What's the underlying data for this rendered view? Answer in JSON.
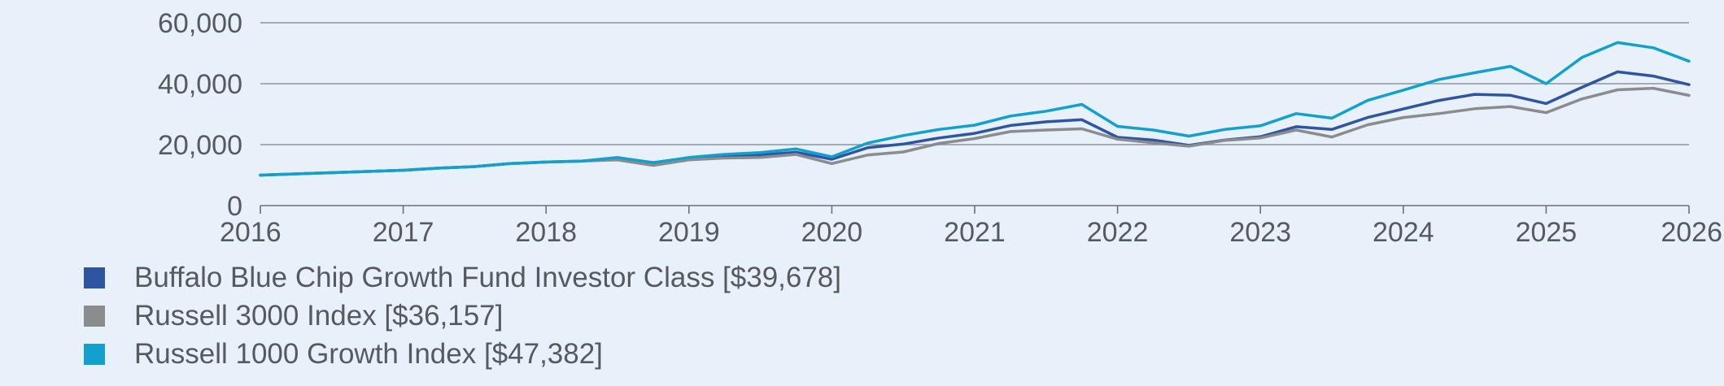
{
  "chart_data": {
    "type": "line",
    "xlim": [
      2016,
      2026
    ],
    "ylim": [
      0,
      60000
    ],
    "yticks": [
      0,
      20000,
      40000,
      60000
    ],
    "ytick_labels": [
      "0",
      "20,000",
      "40,000",
      "60,000"
    ],
    "xticks": [
      2016,
      2017,
      2018,
      2019,
      2020,
      2021,
      2022,
      2023,
      2024,
      2025,
      2026
    ],
    "xtick_labels": [
      "2016",
      "2017",
      "2018",
      "2019",
      "2020",
      "2021",
      "2022",
      "2023",
      "2024",
      "2025",
      "2026"
    ],
    "grid": "horizontal",
    "legend_position": "bottom",
    "x": [
      2016.0,
      2016.5,
      2017.0,
      2017.25,
      2017.5,
      2017.75,
      2018.0,
      2018.25,
      2018.5,
      2018.75,
      2019.0,
      2019.25,
      2019.5,
      2019.75,
      2020.0,
      2020.25,
      2020.5,
      2020.75,
      2021.0,
      2021.25,
      2021.5,
      2021.75,
      2022.0,
      2022.25,
      2022.5,
      2022.75,
      2023.0,
      2023.25,
      2023.5,
      2023.75,
      2024.0,
      2024.25,
      2024.5,
      2024.75,
      2025.0,
      2025.25,
      2025.5,
      2025.75,
      2026.0
    ],
    "series": [
      {
        "name": "Buffalo Blue Chip Growth Fund Investor Class [$39,678]",
        "color": "#2f55a2",
        "values": [
          10000,
          10800,
          11600,
          12300,
          12800,
          13800,
          14300,
          14600,
          15500,
          14100,
          15500,
          16400,
          16600,
          17500,
          15200,
          19000,
          20200,
          22200,
          23700,
          26300,
          27500,
          28200,
          22400,
          21500,
          19800,
          21500,
          22600,
          25900,
          25000,
          28900,
          31700,
          34500,
          36500,
          36200,
          33500,
          38800,
          43900,
          42500,
          39678
        ]
      },
      {
        "name": "Russell 3000 Index [$36,157]",
        "color": "#8a8c8e",
        "values": [
          10000,
          10800,
          11600,
          12300,
          12800,
          13800,
          14300,
          14600,
          15000,
          13200,
          15000,
          15600,
          15800,
          16800,
          13800,
          16600,
          17600,
          20400,
          22000,
          24300,
          24800,
          25200,
          21800,
          20600,
          19500,
          21400,
          22200,
          24800,
          22500,
          26500,
          28900,
          30200,
          31800,
          32500,
          30500,
          35000,
          38000,
          38500,
          36157
        ]
      },
      {
        "name": "Russell 1000 Growth Index [$47,382]",
        "color": "#12a0cf",
        "values": [
          10000,
          10800,
          11600,
          12300,
          12800,
          13800,
          14300,
          14600,
          15800,
          14100,
          15800,
          16800,
          17400,
          18600,
          16000,
          20500,
          23000,
          25000,
          26400,
          29400,
          31000,
          33200,
          26000,
          24800,
          22800,
          25000,
          26200,
          30200,
          28700,
          34500,
          37900,
          41400,
          43600,
          45700,
          40000,
          48600,
          53500,
          51800,
          47382
        ]
      }
    ]
  }
}
